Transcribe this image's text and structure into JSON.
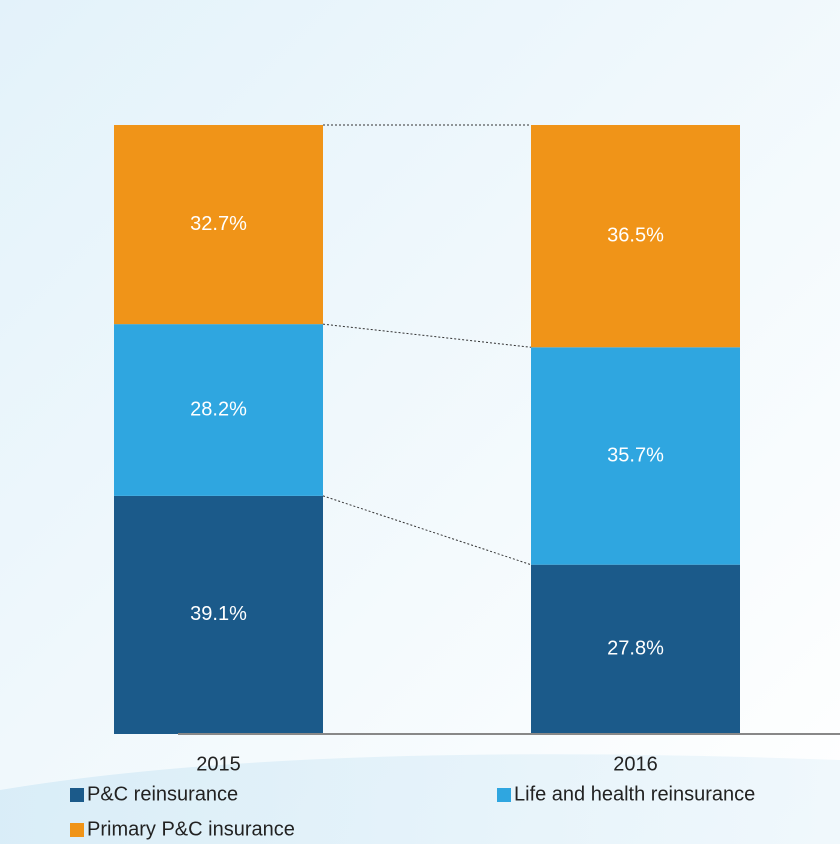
{
  "chart_data": {
    "type": "stacked_bar_100",
    "categories": [
      "2015",
      "2016"
    ],
    "series": [
      {
        "name": "P&C reinsurance",
        "color": "#1b5a8a",
        "values": [
          39.1,
          27.8
        ],
        "value_labels": [
          "39.1%",
          "27.8%"
        ]
      },
      {
        "name": "Life and health reinsurance",
        "color": "#2fa6e0",
        "values": [
          28.2,
          35.7
        ],
        "value_labels": [
          "28.2%",
          "35.7%"
        ]
      },
      {
        "name": "Primary P&C insurance",
        "color": "#f09418",
        "values": [
          32.7,
          36.5
        ],
        "value_labels": [
          "32.7%",
          "36.5%"
        ]
      }
    ],
    "ylim": [
      0,
      100
    ]
  }
}
